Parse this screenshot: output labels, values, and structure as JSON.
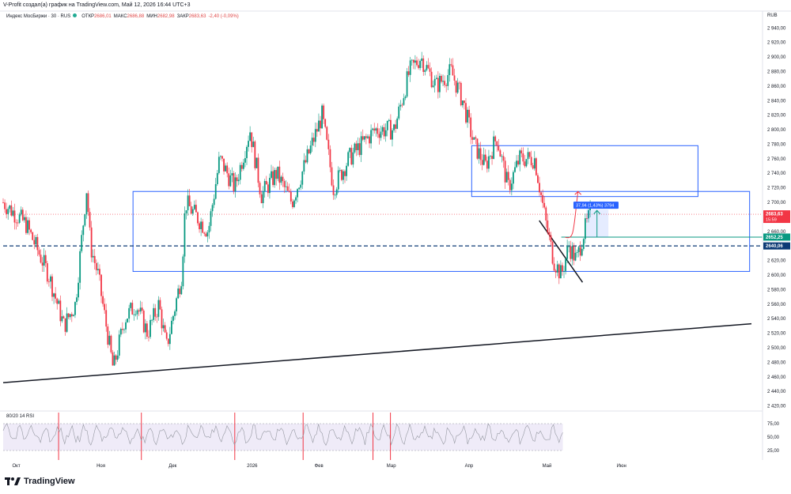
{
  "header": {
    "title": "V-Profit создал(а) график на TradingView.com, Май 12, 2026 16:44 UTC+3"
  },
  "legend": {
    "symbol": "Индекс МосБиржи · 30 · RUS",
    "open_label": "ОТКР",
    "open": "2686,01",
    "high_label": "МАКС",
    "high": "2686,88",
    "low_label": "МИН",
    "low": "2682,98",
    "close_label": "ЗАКР",
    "close": "2683,63",
    "change": "-2,40 (-0,09%)"
  },
  "currency": "RUB",
  "rsi": {
    "label": "80/20 14 RSI",
    "ticks": [
      "75,00",
      "50,00",
      "25,00"
    ]
  },
  "footer": {
    "brand": "TradingView"
  },
  "chart_data": {
    "type": "candlestick",
    "title": "",
    "y_axis": {
      "ticks": [
        "2 940,00",
        "2 920,00",
        "2 900,00",
        "2 880,00",
        "2 860,00",
        "2 840,00",
        "2 820,00",
        "2 800,00",
        "2 780,00",
        "2 760,00",
        "2 740,00",
        "2 720,00",
        "2 700,00",
        "2 680,00",
        "2 660,00",
        "2 640,00",
        "2 620,00",
        "2 600,00",
        "2 580,00",
        "2 560,00",
        "2 540,00",
        "2 520,00",
        "2 500,00",
        "2 480,00",
        "2 460,00",
        "2 440,00",
        "2 420,00"
      ],
      "tick_values": [
        2940,
        2920,
        2900,
        2880,
        2860,
        2840,
        2820,
        2800,
        2780,
        2760,
        2740,
        2720,
        2700,
        2680,
        2660,
        2640,
        2620,
        2600,
        2580,
        2560,
        2540,
        2520,
        2500,
        2480,
        2460,
        2440,
        2420
      ],
      "ylim": [
        2413,
        2949
      ]
    },
    "x_axis": {
      "labels": [
        "Окт",
        "Ноя",
        "Дек",
        "2026",
        "Фев",
        "Мар",
        "Апр",
        "Май",
        "Июн"
      ]
    },
    "price_tags": [
      {
        "text": "2683,63",
        "sub": "15:59",
        "value": 2683.63,
        "color": "#f23645"
      },
      {
        "text": "2652,25",
        "value": 2652.25,
        "color": "#089981"
      },
      {
        "text": "2640,06",
        "value": 2640.06,
        "color": "#0c3a75"
      }
    ],
    "measure_label": "37,94 (1,43%) 3794",
    "price_path": [
      [
        0,
        2700
      ],
      [
        0.03,
        2670
      ],
      [
        0.06,
        2600
      ],
      [
        0.08,
        2530
      ],
      [
        0.095,
        2560
      ],
      [
        0.11,
        2720
      ],
      [
        0.115,
        2640
      ],
      [
        0.125,
        2600
      ],
      [
        0.145,
        2470
      ],
      [
        0.16,
        2540
      ],
      [
        0.175,
        2560
      ],
      [
        0.19,
        2520
      ],
      [
        0.205,
        2560
      ],
      [
        0.215,
        2500
      ],
      [
        0.235,
        2600
      ],
      [
        0.24,
        2700
      ],
      [
        0.255,
        2680
      ],
      [
        0.27,
        2660
      ],
      [
        0.285,
        2760
      ],
      [
        0.305,
        2720
      ],
      [
        0.325,
        2800
      ],
      [
        0.34,
        2710
      ],
      [
        0.36,
        2740
      ],
      [
        0.38,
        2700
      ],
      [
        0.4,
        2760
      ],
      [
        0.42,
        2820
      ],
      [
        0.435,
        2720
      ],
      [
        0.455,
        2760
      ],
      [
        0.49,
        2800
      ],
      [
        0.515,
        2800
      ],
      [
        0.535,
        2880
      ],
      [
        0.55,
        2900
      ],
      [
        0.57,
        2860
      ],
      [
        0.59,
        2880
      ],
      [
        0.605,
        2840
      ],
      [
        0.62,
        2780
      ],
      [
        0.635,
        2750
      ],
      [
        0.65,
        2790
      ],
      [
        0.665,
        2720
      ],
      [
        0.68,
        2760
      ],
      [
        0.7,
        2760
      ],
      [
        0.715,
        2670
      ],
      [
        0.725,
        2620
      ],
      [
        0.735,
        2600
      ],
      [
        0.745,
        2640
      ],
      [
        0.755,
        2620
      ],
      [
        0.765,
        2660
      ],
      [
        0.773,
        2683.63
      ]
    ]
  }
}
